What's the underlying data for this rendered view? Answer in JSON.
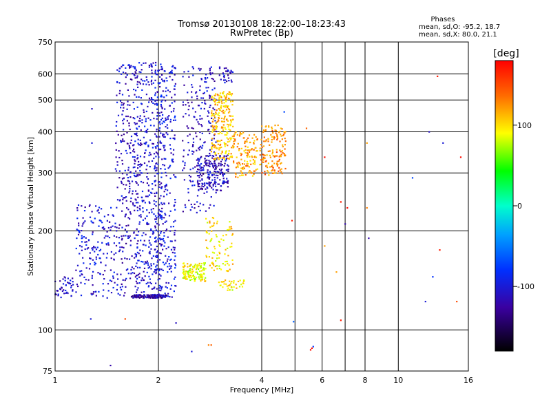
{
  "chart_data": {
    "type": "scatter",
    "title": "Tromsø 20130108 18:22:00–18:23:43",
    "subtitle": "RwPretec (Bp)",
    "xlabel": "Frequency [MHz]",
    "ylabel": "Stationary phase Virtual Height [km]",
    "x_scale": "log",
    "y_scale": "log",
    "xlim": [
      1,
      16
    ],
    "ylim": [
      75,
      750
    ],
    "x_ticks": [
      1,
      2,
      4,
      6,
      8,
      10,
      16
    ],
    "x_tick_labels": [
      "1",
      "2",
      "4",
      "6",
      "8",
      "10",
      "16"
    ],
    "y_ticks": [
      75,
      100,
      200,
      300,
      400,
      500,
      600,
      750
    ],
    "y_tick_labels": [
      "75",
      "100",
      "200",
      "300",
      "400",
      "500",
      "600",
      "750"
    ],
    "grid": true,
    "stats": {
      "heading": "Phases",
      "line_o": "mean, sd,O:  -95.2,  18.7",
      "line_x": "mean, sd,X:   80.0,  21.1"
    },
    "colorbar": {
      "label": "[deg]",
      "min": -180,
      "max": 180,
      "ticks": [
        100,
        0,
        -100
      ],
      "tick_labels": [
        "100",
        "0",
        "-100"
      ]
    },
    "clusters": [
      {
        "freq": [
          1.0,
          1.13
        ],
        "height": [
          125,
          145
        ],
        "phase": -110,
        "count": 45
      },
      {
        "freq": [
          1.15,
          1.5
        ],
        "height": [
          125,
          240
        ],
        "phase": -105,
        "count": 180
      },
      {
        "freq": [
          1.5,
          1.75
        ],
        "height": [
          125,
          640
        ],
        "phase": -110,
        "count": 260
      },
      {
        "freq": [
          1.7,
          2.05
        ],
        "height": [
          125,
          650
        ],
        "phase": -105,
        "count": 420
      },
      {
        "freq": [
          1.95,
          2.25
        ],
        "height": [
          125,
          640
        ],
        "phase": -100,
        "count": 320
      },
      {
        "freq": [
          1.68,
          2.12
        ],
        "height": [
          125,
          128
        ],
        "phase": -120,
        "count": 120
      },
      {
        "freq": [
          2.35,
          2.75
        ],
        "height": [
          140,
          160
        ],
        "phase": 90,
        "count": 130
      },
      {
        "freq": [
          2.35,
          2.95
        ],
        "height": [
          225,
          630
        ],
        "phase": -110,
        "count": 230
      },
      {
        "freq": [
          2.6,
          3.2
        ],
        "height": [
          265,
          340
        ],
        "phase": -115,
        "count": 170
      },
      {
        "freq": [
          2.75,
          3.3
        ],
        "height": [
          150,
          220
        ],
        "phase": 100,
        "count": 90
      },
      {
        "freq": [
          2.85,
          3.3
        ],
        "height": [
          330,
          530
        ],
        "phase": 110,
        "count": 230
      },
      {
        "freq": [
          3.0,
          3.3
        ],
        "height": [
          560,
          630
        ],
        "phase": -110,
        "count": 30
      },
      {
        "freq": [
          3.3,
          3.9
        ],
        "height": [
          290,
          400
        ],
        "phase": 120,
        "count": 130
      },
      {
        "freq": [
          3.95,
          4.7
        ],
        "height": [
          295,
          420
        ],
        "phase": 130,
        "count": 150
      },
      {
        "freq": [
          3.0,
          3.6
        ],
        "height": [
          132,
          142
        ],
        "phase": 95,
        "count": 40
      }
    ],
    "points": [
      {
        "freq": 1.28,
        "height": 470,
        "phase": -110
      },
      {
        "freq": 1.28,
        "height": 370,
        "phase": -100
      },
      {
        "freq": 1.27,
        "height": 108,
        "phase": -100
      },
      {
        "freq": 1.45,
        "height": 78,
        "phase": -120
      },
      {
        "freq": 1.6,
        "height": 108,
        "phase": 150
      },
      {
        "freq": 2.25,
        "height": 105,
        "phase": -110
      },
      {
        "freq": 2.5,
        "height": 86,
        "phase": -100
      },
      {
        "freq": 2.8,
        "height": 90,
        "phase": 130
      },
      {
        "freq": 2.85,
        "height": 90,
        "phase": 140
      },
      {
        "freq": 4.65,
        "height": 460,
        "phase": -70
      },
      {
        "freq": 4.9,
        "height": 215,
        "phase": 170
      },
      {
        "freq": 5.4,
        "height": 410,
        "phase": 140
      },
      {
        "freq": 5.6,
        "height": 88,
        "phase": 175
      },
      {
        "freq": 5.65,
        "height": 89,
        "phase": -80
      },
      {
        "freq": 5.55,
        "height": 87,
        "phase": 175
      },
      {
        "freq": 4.95,
        "height": 106,
        "phase": -60
      },
      {
        "freq": 6.1,
        "height": 335,
        "phase": 175
      },
      {
        "freq": 6.1,
        "height": 180,
        "phase": 120
      },
      {
        "freq": 6.6,
        "height": 150,
        "phase": 120
      },
      {
        "freq": 6.8,
        "height": 245,
        "phase": 170
      },
      {
        "freq": 6.8,
        "height": 107,
        "phase": 170
      },
      {
        "freq": 7.1,
        "height": 235,
        "phase": 175
      },
      {
        "freq": 7.0,
        "height": 210,
        "phase": -120
      },
      {
        "freq": 8.1,
        "height": 235,
        "phase": 130
      },
      {
        "freq": 8.1,
        "height": 370,
        "phase": 120
      },
      {
        "freq": 8.2,
        "height": 190,
        "phase": -120
      },
      {
        "freq": 11.0,
        "height": 290,
        "phase": -70
      },
      {
        "freq": 12.3,
        "height": 400,
        "phase": -110
      },
      {
        "freq": 12.0,
        "height": 122,
        "phase": -100
      },
      {
        "freq": 12.6,
        "height": 145,
        "phase": -80
      },
      {
        "freq": 13.0,
        "height": 590,
        "phase": 170
      },
      {
        "freq": 13.2,
        "height": 175,
        "phase": 170
      },
      {
        "freq": 13.5,
        "height": 370,
        "phase": -100
      },
      {
        "freq": 14.8,
        "height": 122,
        "phase": 150
      },
      {
        "freq": 15.2,
        "height": 335,
        "phase": 175
      }
    ]
  }
}
